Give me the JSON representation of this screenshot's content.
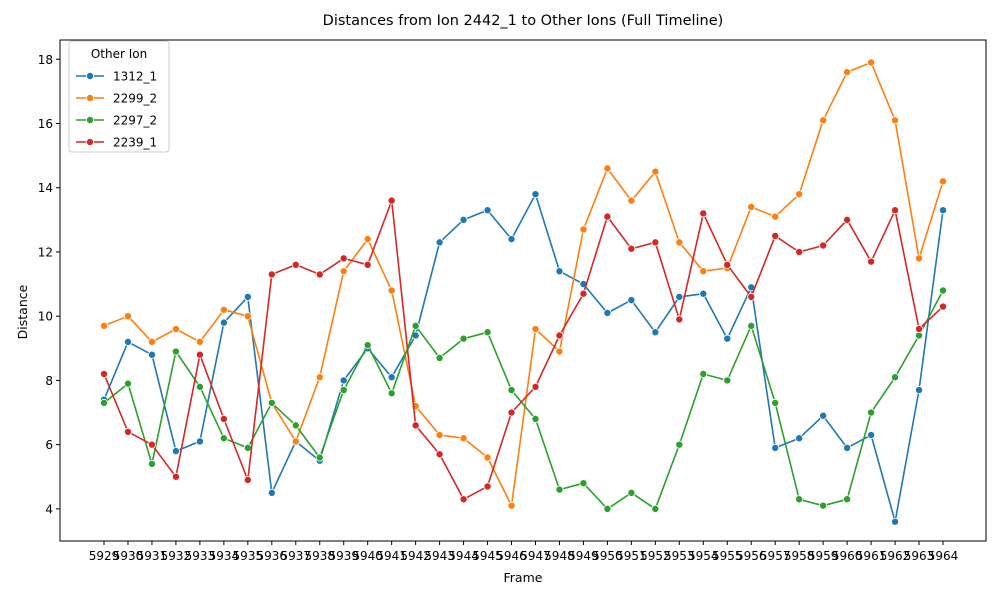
{
  "chart_data": {
    "type": "line",
    "title": "Distances from Ion 2442_1 to Other Ions (Full Timeline)",
    "xlabel": "Frame",
    "ylabel": "Distance",
    "ylim": [
      3.0,
      18.6
    ],
    "y_ticks": [
      4,
      6,
      8,
      10,
      12,
      14,
      16,
      18
    ],
    "grid": false,
    "legend_position": "top-left",
    "legend_title": "Other Ion",
    "categories": [
      "5929",
      "5930",
      "5931",
      "5932",
      "5933",
      "5934",
      "5935",
      "5936",
      "5937",
      "5938",
      "5939",
      "5940",
      "5941",
      "5942",
      "5943",
      "5944",
      "5945",
      "5946",
      "5947",
      "5948",
      "5949",
      "5950",
      "5951",
      "5952",
      "5953",
      "5954",
      "5955",
      "5956",
      "5957",
      "5958",
      "5959",
      "5960",
      "5961",
      "5962",
      "5963",
      "5964"
    ],
    "series": [
      {
        "name": "1312_1",
        "color": "#1f77b4",
        "values": [
          7.4,
          9.2,
          8.8,
          5.8,
          6.1,
          9.8,
          10.6,
          4.5,
          6.1,
          5.5,
          8.0,
          9.0,
          8.1,
          9.4,
          12.3,
          13.0,
          13.3,
          12.4,
          13.8,
          11.4,
          11.0,
          10.1,
          10.5,
          9.5,
          10.6,
          10.7,
          9.3,
          10.9,
          5.9,
          6.2,
          6.9,
          5.9,
          6.3,
          3.6,
          7.7,
          13.3
        ]
      },
      {
        "name": "2299_2",
        "color": "#ff7f0e",
        "values": [
          9.7,
          10.0,
          9.2,
          9.6,
          9.2,
          10.2,
          10.0,
          7.3,
          6.1,
          8.1,
          11.4,
          12.4,
          10.8,
          7.2,
          6.3,
          6.2,
          5.6,
          4.1,
          9.6,
          8.9,
          12.7,
          14.6,
          13.6,
          14.5,
          12.3,
          11.4,
          11.5,
          13.4,
          13.1,
          13.8,
          16.1,
          17.6,
          17.9,
          16.1,
          11.8,
          14.2
        ]
      },
      {
        "name": "2297_2",
        "color": "#2ca02c",
        "values": [
          7.3,
          7.9,
          5.4,
          8.9,
          7.8,
          6.2,
          5.9,
          7.3,
          6.6,
          5.6,
          7.7,
          9.1,
          7.6,
          9.7,
          8.7,
          9.3,
          9.5,
          7.7,
          6.8,
          4.6,
          4.8,
          4.0,
          4.5,
          4.0,
          6.0,
          8.2,
          8.0,
          9.7,
          7.3,
          4.3,
          4.1,
          4.3,
          7.0,
          8.1,
          9.4,
          10.8
        ]
      },
      {
        "name": "2239_1",
        "color": "#d62728",
        "values": [
          8.2,
          6.4,
          6.0,
          5.0,
          8.8,
          6.8,
          4.9,
          11.3,
          11.6,
          11.3,
          11.8,
          11.6,
          13.6,
          6.6,
          5.7,
          4.3,
          4.7,
          7.0,
          7.8,
          9.4,
          10.7,
          13.1,
          12.1,
          12.3,
          9.9,
          13.2,
          11.6,
          10.6,
          12.5,
          12.0,
          12.2,
          13.0,
          11.7,
          13.3,
          9.6,
          10.3
        ]
      }
    ]
  }
}
